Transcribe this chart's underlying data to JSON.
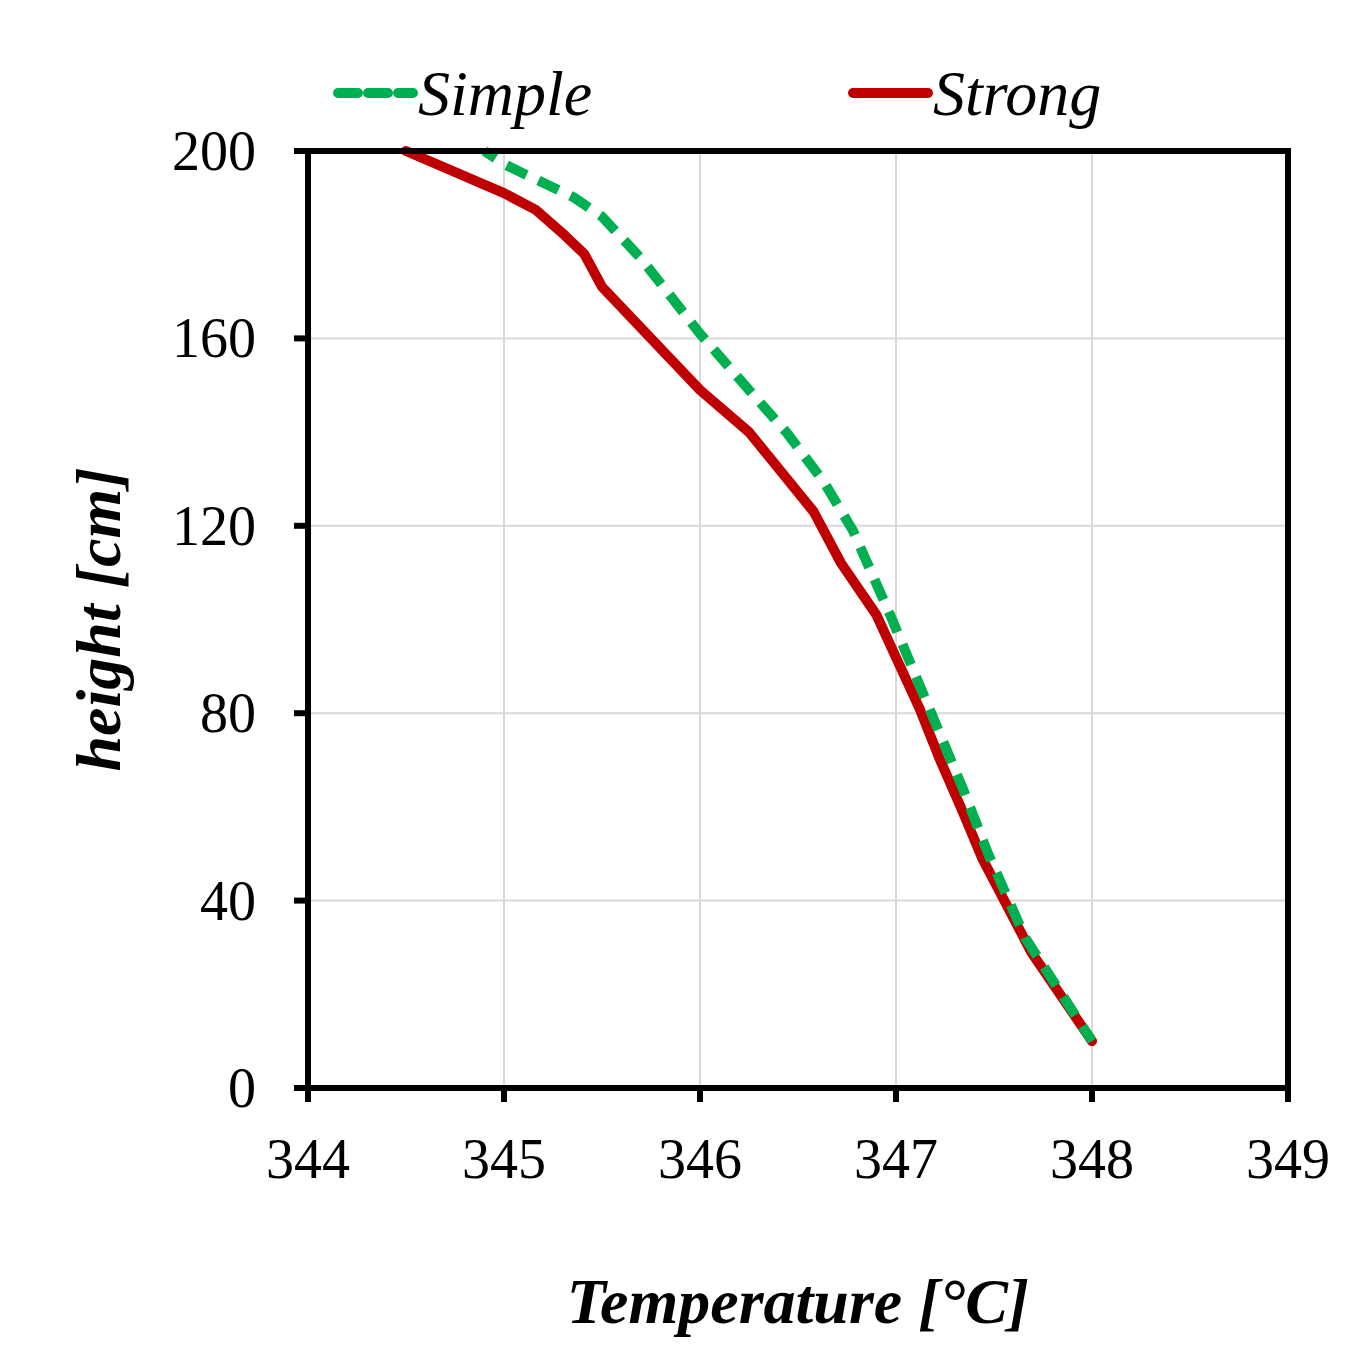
{
  "chart_data": {
    "type": "line",
    "xlabel": "Temperature [°C]",
    "ylabel": "height [cm]",
    "xlim": [
      344,
      349
    ],
    "xticks": [
      344,
      345,
      346,
      347,
      348,
      349
    ],
    "ylim": [
      0,
      200
    ],
    "yticks": [
      0,
      40,
      80,
      120,
      160,
      200
    ],
    "grid": true,
    "legend": "top",
    "series": [
      {
        "name": "Simple",
        "color": "#00b050",
        "line_style": "dashed",
        "x": [
          344.9,
          345.01,
          345.36,
          345.5,
          345.7,
          346.0,
          346.25,
          346.44,
          346.63,
          346.78,
          346.97,
          347.17,
          347.34,
          347.47,
          347.66,
          348.0
        ],
        "values": [
          200,
          197,
          190,
          186,
          177,
          161,
          149,
          140,
          129.5,
          119,
          101,
          81,
          64,
          50,
          32,
          10
        ]
      },
      {
        "name": "Strong",
        "color": "#c00000",
        "line_style": "solid",
        "x": [
          344.5,
          345.0,
          345.16,
          345.31,
          345.41,
          345.5,
          346.0,
          346.25,
          346.58,
          346.72,
          346.9,
          347.12,
          347.22,
          347.34,
          347.44,
          347.69,
          348.0
        ],
        "values": [
          200,
          191,
          187.5,
          182,
          178,
          171,
          149,
          140,
          123,
          112,
          101,
          81,
          70.5,
          59,
          49,
          29,
          10
        ]
      }
    ]
  }
}
